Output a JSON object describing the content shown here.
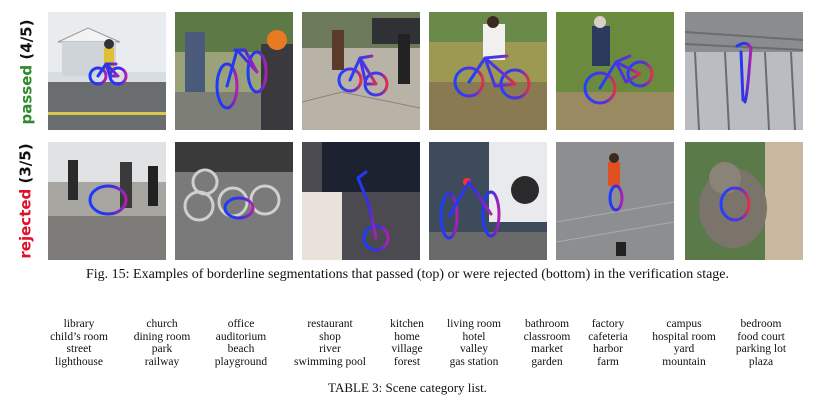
{
  "row_labels": {
    "passed": {
      "word": "passed",
      "count": "(4/5)"
    },
    "rejected": {
      "word": "rejected",
      "count": "(3/5)"
    }
  },
  "figure_caption": "Fig. 15: Examples of borderline segmentations that passed (top) or were rejected (bottom) in the verification stage.",
  "table_caption": "TABLE 3: Scene category list.",
  "scene_table": [
    [
      "library",
      "child’s room",
      "street",
      "lighthouse"
    ],
    [
      "church",
      "dining room",
      "park",
      "railway"
    ],
    [
      "office",
      "auditorium",
      "beach",
      "playground"
    ],
    [
      "restaurant",
      "shop",
      "river",
      "swimming pool"
    ],
    [
      "kitchen",
      "home",
      "village",
      "forest"
    ],
    [
      "living room",
      "hotel",
      "valley",
      "gas station"
    ],
    [
      "bathroom",
      "classroom",
      "market",
      "garden"
    ],
    [
      "factory",
      "cafeteria",
      "harbor",
      "farm"
    ],
    [
      "campus",
      "hospital room",
      "yard",
      "mountain"
    ],
    [
      "bedroom",
      "food court",
      "parking lot",
      "plaza"
    ]
  ]
}
